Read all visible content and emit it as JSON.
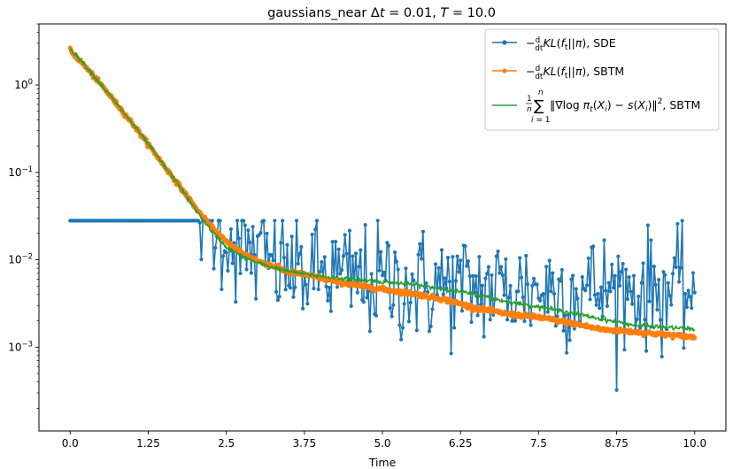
{
  "chart_data": {
    "type": "line",
    "title": "gaussians_near Δt = 0.01, T = 10.0",
    "xlabel": "Time",
    "ylabel": "",
    "xlim": [
      -0.5,
      10.5
    ],
    "ylim": [
      0.00011,
      5.0
    ],
    "yscale": "log",
    "x_ticks": [
      0.0,
      1.25,
      2.5,
      3.75,
      5.0,
      6.25,
      7.5,
      8.75,
      10.0
    ],
    "x_tick_labels": [
      "0.0",
      "1.25",
      "2.5",
      "3.75",
      "5.0",
      "6.25",
      "7.5",
      "8.75",
      "10.0"
    ],
    "y_tick_labels": [
      "10^-3",
      "10^-2",
      "10^-1",
      "10^0"
    ],
    "legend_position": "top-right",
    "grid": false,
    "series": [
      {
        "name": "−(d/dt)KL(f_t||π), SDE",
        "color": "#1f77b4",
        "marker": "circle",
        "sampled_points": [
          [
            0.0,
            2.5
          ],
          [
            0.25,
            1.7
          ],
          [
            0.5,
            1.0
          ],
          [
            0.75,
            0.62
          ],
          [
            1.0,
            0.38
          ],
          [
            1.25,
            0.22
          ],
          [
            1.5,
            0.13
          ],
          [
            1.75,
            0.075
          ],
          [
            2.0,
            0.045
          ],
          [
            2.25,
            0.028
          ],
          [
            2.5,
            0.019
          ],
          [
            2.75,
            0.014
          ],
          [
            3.0,
            0.011
          ],
          [
            3.25,
            0.009
          ],
          [
            3.5,
            0.008
          ],
          [
            3.75,
            0.0075
          ],
          [
            4.0,
            0.007
          ],
          [
            4.5,
            0.006
          ],
          [
            5.0,
            0.0055
          ],
          [
            5.5,
            0.005
          ],
          [
            6.0,
            0.005
          ],
          [
            6.25,
            0.0046
          ],
          [
            6.5,
            0.0048
          ],
          [
            7.0,
            0.0046
          ],
          [
            7.5,
            0.0045
          ],
          [
            8.0,
            0.0045
          ],
          [
            8.5,
            0.0046
          ],
          [
            9.0,
            0.0045
          ],
          [
            9.5,
            0.0045
          ],
          [
            10.0,
            0.0044
          ]
        ],
        "noise_note": "large fluctuations after t≈2 spanning about 0.0004 to 0.02; minimum ≈0.0002 near t=6.25; maximum late-time ≈0.025"
      },
      {
        "name": "−(d/dt)KL(f_t||π), SBTM",
        "color": "#ff7f0e",
        "marker": "circle",
        "sampled_points": [
          [
            0.0,
            2.5
          ],
          [
            0.25,
            1.6
          ],
          [
            0.5,
            1.0
          ],
          [
            0.75,
            0.6
          ],
          [
            1.0,
            0.36
          ],
          [
            1.25,
            0.21
          ],
          [
            1.5,
            0.12
          ],
          [
            1.75,
            0.07
          ],
          [
            2.0,
            0.04
          ],
          [
            2.25,
            0.024
          ],
          [
            2.5,
            0.016
          ],
          [
            2.75,
            0.012
          ],
          [
            3.0,
            0.0097
          ],
          [
            3.25,
            0.0085
          ],
          [
            3.5,
            0.0072
          ],
          [
            3.75,
            0.0068
          ],
          [
            4.0,
            0.0062
          ],
          [
            4.5,
            0.0052
          ],
          [
            5.0,
            0.0046
          ],
          [
            5.5,
            0.0041
          ],
          [
            6.0,
            0.0035
          ],
          [
            6.5,
            0.0028
          ],
          [
            7.0,
            0.0024
          ],
          [
            7.5,
            0.0022
          ],
          [
            8.0,
            0.0019
          ],
          [
            8.5,
            0.0016
          ],
          [
            9.0,
            0.0015
          ],
          [
            9.5,
            0.0014
          ],
          [
            10.0,
            0.0013
          ]
        ]
      },
      {
        "name": "(1/n)∑ᵢ₌₁ⁿ ‖∇log π_t(X_i) − s(X_i)‖², SBTM",
        "color": "#2ca02c",
        "marker": "none",
        "sampled_points": [
          [
            0.0,
            2.6
          ],
          [
            0.25,
            1.65
          ],
          [
            0.5,
            1.0
          ],
          [
            0.75,
            0.6
          ],
          [
            1.0,
            0.36
          ],
          [
            1.25,
            0.21
          ],
          [
            1.5,
            0.12
          ],
          [
            1.75,
            0.07
          ],
          [
            2.0,
            0.038
          ],
          [
            2.25,
            0.022
          ],
          [
            2.5,
            0.014
          ],
          [
            2.75,
            0.011
          ],
          [
            3.0,
            0.0092
          ],
          [
            3.25,
            0.0082
          ],
          [
            3.5,
            0.0074
          ],
          [
            3.75,
            0.0069
          ],
          [
            4.0,
            0.0065
          ],
          [
            4.5,
            0.006
          ],
          [
            5.0,
            0.0056
          ],
          [
            5.5,
            0.0052
          ],
          [
            6.0,
            0.0046
          ],
          [
            6.5,
            0.004
          ],
          [
            7.0,
            0.0033
          ],
          [
            7.5,
            0.0029
          ],
          [
            8.0,
            0.0025
          ],
          [
            8.5,
            0.0021
          ],
          [
            9.0,
            0.0018
          ],
          [
            9.5,
            0.0017
          ],
          [
            10.0,
            0.0016
          ]
        ]
      }
    ]
  }
}
